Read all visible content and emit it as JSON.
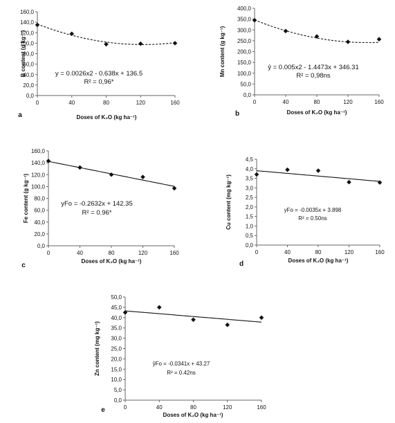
{
  "chart_data": [
    {
      "type": "scatter",
      "panel": "a",
      "xlabel": "Doses of K₂O (kg ha⁻¹)",
      "ylabel": "B content (g kg⁻¹)",
      "xlim": [
        0,
        160
      ],
      "ylim": [
        0,
        160
      ],
      "xticks": [
        0,
        40,
        80,
        120,
        160
      ],
      "yticks": [
        "0,0",
        "20,0",
        "40,0",
        "60,0",
        "80,0",
        "100,0",
        "120,0",
        "140,0",
        "160,0"
      ],
      "x": [
        0,
        40,
        80,
        120,
        160
      ],
      "y": [
        135,
        118,
        98,
        99,
        100
      ],
      "fit": {
        "kind": "quadratic",
        "style": "dashed",
        "a": 0.0026,
        "b": -0.638,
        "c": 136.5
      },
      "equation": "y = 0.0026x2 - 0.638x + 136.5",
      "r2": "R² = 0,96*"
    },
    {
      "type": "scatter",
      "panel": "b",
      "xlabel": "Doses of K₂O (kg ha⁻¹)",
      "ylabel": "Mn content (g kg⁻¹)",
      "xlim": [
        0,
        160
      ],
      "ylim": [
        0,
        400
      ],
      "xticks": [
        0,
        40,
        80,
        120,
        160
      ],
      "yticks": [
        "0,0",
        "50,0",
        "100,0",
        "150,0",
        "200,0",
        "250,0",
        "300,0",
        "350,0",
        "400,0"
      ],
      "x": [
        0,
        40,
        80,
        120,
        160
      ],
      "y": [
        345,
        295,
        270,
        245,
        257
      ],
      "fit": {
        "kind": "quadratic",
        "style": "dashed",
        "a": 0.005,
        "b": -1.4473,
        "c": 346.31
      },
      "equation": "ŷ = 0.005x2 - 1.4473x + 346.31",
      "r2": "R² = 0,98ns"
    },
    {
      "type": "scatter",
      "panel": "c",
      "xlabel": "Doses of K₂O (kg ha⁻¹)",
      "ylabel": "Fe content (g kg⁻¹)",
      "xlim": [
        0,
        160
      ],
      "ylim": [
        0,
        160
      ],
      "xticks": [
        0,
        40,
        80,
        120,
        160
      ],
      "yticks": [
        "0,0",
        "20,0",
        "40,0",
        "60,0",
        "80,0",
        "100,0",
        "120,0",
        "140,0",
        "160,0"
      ],
      "x": [
        0,
        40,
        80,
        120,
        160
      ],
      "y": [
        143,
        132,
        120,
        116,
        97
      ],
      "fit": {
        "kind": "linear",
        "style": "solid",
        "b": -0.2632,
        "c": 142.35
      },
      "equation": "yFo = -0.2632x + 142.35",
      "r2": "R² = 0.96*"
    },
    {
      "type": "scatter",
      "panel": "d",
      "xlabel": "Doses of K₂O (kg ha⁻¹)",
      "ylabel": "Cu content (mg kg⁻¹)",
      "xlim": [
        0,
        160
      ],
      "ylim": [
        0,
        4.5
      ],
      "xticks": [
        0,
        40,
        80,
        120,
        160
      ],
      "yticks": [
        "0,0",
        "0,5",
        "1,0",
        "1,5",
        "2,0",
        "2,5",
        "3,0",
        "3,5",
        "4,0",
        "4,5"
      ],
      "x": [
        0,
        40,
        80,
        120,
        160
      ],
      "y": [
        3.7,
        3.95,
        3.9,
        3.3,
        3.28
      ],
      "fit": {
        "kind": "linear",
        "style": "solid",
        "b": -0.0035,
        "c": 3.898
      },
      "equation": "yFo = -0.0035x + 3.898",
      "r2": "R² = 0.50ns"
    },
    {
      "type": "scatter",
      "panel": "e",
      "xlabel": "Doses of K₂O (kg ha⁻¹)",
      "ylabel": "Zn content (mg kg⁻¹)",
      "xlim": [
        0,
        160
      ],
      "ylim": [
        0,
        50
      ],
      "xticks": [
        0,
        40,
        80,
        120,
        160
      ],
      "yticks": [
        "0,0",
        "5,0",
        "10,0",
        "15,0",
        "20,0",
        "25,0",
        "30,0",
        "35,0",
        "40,0",
        "45,0",
        "50,0"
      ],
      "x": [
        0,
        40,
        80,
        120,
        160
      ],
      "y": [
        42.5,
        45,
        39,
        36.5,
        40
      ],
      "fit": {
        "kind": "linear",
        "style": "solid",
        "b": -0.0341,
        "c": 43.27
      },
      "equation": "ŷFo = -0.0341x + 43.27",
      "r2": "R² = 0.42ns"
    }
  ]
}
